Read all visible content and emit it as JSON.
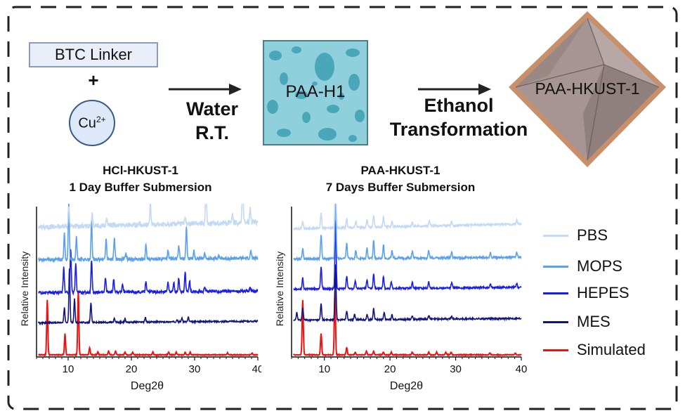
{
  "scheme": {
    "btc_linker": "BTC Linker",
    "plus": "+",
    "copper_base": "Cu",
    "copper_charge": "2+",
    "step1": [
      "Water",
      "R.T."
    ],
    "intermediate": "PAA-H1",
    "step2": [
      "Ethanol",
      "Transformation"
    ],
    "product": "PAA-HKUST-1"
  },
  "colors": {
    "PBS": "#c3d9f4",
    "MOPS": "#5aa0ea",
    "HEPES": "#1b1de8",
    "MES": "#10157a",
    "Simulated": "#ee1111",
    "cube_fill": "#a69593",
    "cube_border": "#c8906a",
    "tile_bg": "#8fd0dc"
  },
  "legend": [
    "PBS",
    "MOPS",
    "HEPES",
    "MES",
    "Simulated"
  ],
  "chart_data": [
    {
      "type": "line",
      "title": [
        "HCl-HKUST-1",
        "1 Day Buffer Submersion"
      ],
      "xlabel": "Deg2θ",
      "ylabel": "Relative Intensity",
      "xlim": [
        5,
        40
      ],
      "xticks": [
        10,
        20,
        30,
        40
      ],
      "series": [
        {
          "name": "Simulated",
          "offset": 0,
          "peaks": [
            [
              6.7,
              60
            ],
            [
              9.5,
              23
            ],
            [
              11.6,
              70
            ],
            [
              13.4,
              8
            ],
            [
              14.7,
              3
            ],
            [
              16.4,
              4
            ],
            [
              17.5,
              4
            ],
            [
              19.0,
              3
            ],
            [
              20.2,
              3
            ],
            [
              23.4,
              3
            ],
            [
              25.9,
              3
            ],
            [
              27.1,
              3
            ],
            [
              28.5,
              3
            ],
            [
              29.3,
              3
            ],
            [
              35.2,
              2
            ],
            [
              39.1,
              2
            ]
          ],
          "noise": 0.4
        },
        {
          "name": "MES",
          "offset": 35,
          "peaks": [
            [
              9.4,
              16
            ],
            [
              10.2,
              60
            ],
            [
              11.0,
              26
            ],
            [
              13.6,
              22
            ],
            [
              17.3,
              4
            ],
            [
              19.0,
              3
            ],
            [
              22.2,
              5
            ],
            [
              27.2,
              3
            ],
            [
              28.0,
              4
            ],
            [
              29.0,
              5
            ]
          ],
          "noise": 0.8
        },
        {
          "name": "HEPES",
          "offset": 68,
          "peaks": [
            [
              9.3,
              28
            ],
            [
              10.4,
              48
            ],
            [
              11.2,
              33
            ],
            [
              13.7,
              36
            ],
            [
              15.9,
              16
            ],
            [
              17.2,
              14
            ],
            [
              18.6,
              8
            ],
            [
              22.3,
              13
            ],
            [
              25.8,
              10
            ],
            [
              26.7,
              11
            ],
            [
              27.5,
              15
            ],
            [
              28.5,
              22
            ],
            [
              29.2,
              12
            ],
            [
              31.6,
              6
            ],
            [
              38.8,
              4
            ]
          ],
          "noise": 1.5
        },
        {
          "name": "MOPS",
          "offset": 104,
          "peaks": [
            [
              9.4,
              28
            ],
            [
              10.1,
              62
            ],
            [
              11.3,
              25
            ],
            [
              13.7,
              42
            ],
            [
              16.0,
              22
            ],
            [
              17.3,
              24
            ],
            [
              19.1,
              7
            ],
            [
              22.3,
              16
            ],
            [
              25.8,
              10
            ],
            [
              27.5,
              14
            ],
            [
              28.7,
              35
            ],
            [
              29.9,
              9
            ],
            [
              31.6,
              6
            ],
            [
              33.8,
              4
            ],
            [
              38.9,
              8
            ]
          ],
          "noise": 1.8
        },
        {
          "name": "PBS",
          "offset": 140,
          "peaks": [
            [
              10.1,
              24
            ],
            [
              13.8,
              12
            ],
            [
              16.1,
              8
            ],
            [
              23.0,
              24
            ],
            [
              28.5,
              7
            ],
            [
              31.8,
              40
            ],
            [
              36.0,
              9
            ],
            [
              37.6,
              50
            ],
            [
              38.8,
              15
            ]
          ],
          "noise": 2.8
        }
      ]
    },
    {
      "type": "line",
      "title": [
        "PAA-HKUST-1",
        "7 Days Buffer Submersion"
      ],
      "xlabel": "Deg2θ",
      "ylabel": "Relative Intensity",
      "xlim": [
        5,
        40
      ],
      "xticks": [
        10,
        20,
        30,
        40
      ],
      "series": [
        {
          "name": "Simulated",
          "offset": 0,
          "peaks": [
            [
              6.7,
              60
            ],
            [
              9.5,
              23
            ],
            [
              11.6,
              70
            ],
            [
              13.4,
              8
            ],
            [
              14.7,
              3
            ],
            [
              16.4,
              4
            ],
            [
              17.5,
              4
            ],
            [
              19.0,
              3
            ],
            [
              20.2,
              3
            ],
            [
              23.4,
              3
            ],
            [
              25.9,
              3
            ],
            [
              27.1,
              3
            ],
            [
              28.5,
              3
            ],
            [
              29.3,
              3
            ],
            [
              35.2,
              2
            ],
            [
              39.1,
              2
            ]
          ],
          "noise": 0.4
        },
        {
          "name": "MES",
          "offset": 38,
          "peaks": [
            [
              5.8,
              8
            ],
            [
              6.7,
              14
            ],
            [
              9.5,
              18
            ],
            [
              11.7,
              60
            ],
            [
              13.4,
              10
            ],
            [
              14.6,
              6
            ],
            [
              16.5,
              6
            ],
            [
              17.5,
              12
            ],
            [
              19.1,
              8
            ],
            [
              20.3,
              5
            ],
            [
              23.4,
              4
            ],
            [
              25.9,
              4
            ],
            [
              29.4,
              4
            ]
          ],
          "noise": 0.9
        },
        {
          "name": "HEPES",
          "offset": 72,
          "peaks": [
            [
              6.7,
              12
            ],
            [
              9.5,
              25
            ],
            [
              11.7,
              75
            ],
            [
              13.4,
              14
            ],
            [
              14.7,
              9
            ],
            [
              16.5,
              10
            ],
            [
              17.5,
              16
            ],
            [
              19.0,
              13
            ],
            [
              20.2,
              7
            ],
            [
              23.4,
              6
            ],
            [
              25.9,
              7
            ],
            [
              29.4,
              6
            ],
            [
              35.3,
              4
            ],
            [
              39.3,
              4
            ]
          ],
          "noise": 1.0
        },
        {
          "name": "MOPS",
          "offset": 105,
          "peaks": [
            [
              6.7,
              12
            ],
            [
              9.5,
              26
            ],
            [
              11.7,
              80
            ],
            [
              13.4,
              17
            ],
            [
              14.8,
              9
            ],
            [
              16.5,
              12
            ],
            [
              17.5,
              20
            ],
            [
              19.0,
              15
            ],
            [
              20.3,
              8
            ],
            [
              23.4,
              7
            ],
            [
              25.9,
              8
            ],
            [
              29.4,
              7
            ],
            [
              35.3,
              5
            ],
            [
              39.3,
              5
            ]
          ],
          "noise": 1.2
        },
        {
          "name": "PBS",
          "offset": 138,
          "peaks": [
            [
              6.7,
              8
            ],
            [
              9.5,
              18
            ],
            [
              11.7,
              62
            ],
            [
              13.4,
              10
            ],
            [
              14.8,
              7
            ],
            [
              16.5,
              8
            ],
            [
              17.5,
              13
            ],
            [
              19.0,
              11
            ],
            [
              20.3,
              6
            ],
            [
              23.4,
              5
            ],
            [
              26.0,
              6
            ],
            [
              29.4,
              5
            ],
            [
              39.3,
              4
            ]
          ],
          "noise": 1.2
        }
      ]
    }
  ]
}
